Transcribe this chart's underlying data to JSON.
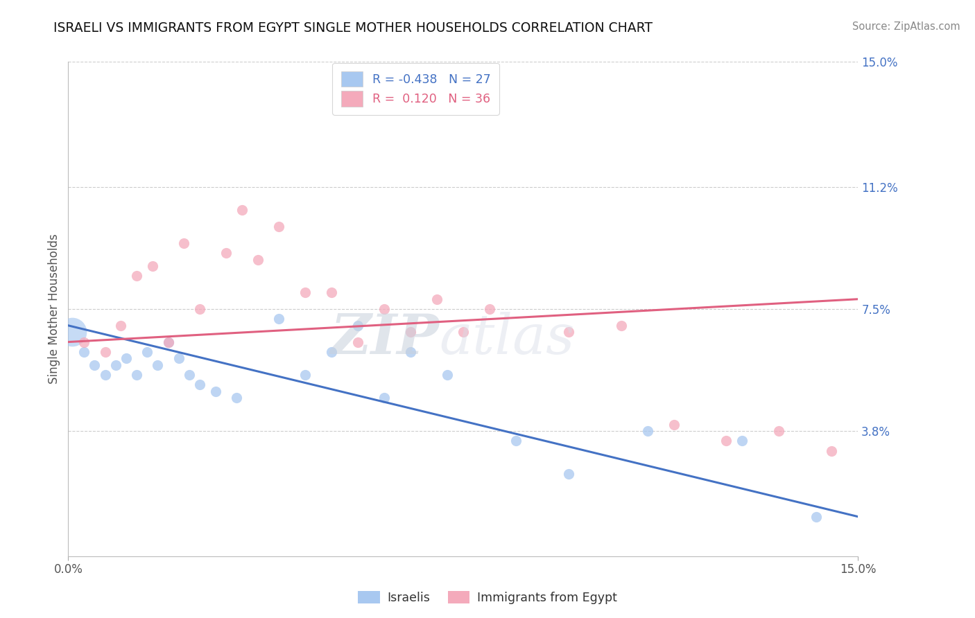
{
  "title": "ISRAELI VS IMMIGRANTS FROM EGYPT SINGLE MOTHER HOUSEHOLDS CORRELATION CHART",
  "source": "Source: ZipAtlas.com",
  "ylabel": "Single Mother Households",
  "ytick_values": [
    0.0,
    3.8,
    7.5,
    11.2,
    15.0
  ],
  "ytick_labels": [
    "",
    "3.8%",
    "7.5%",
    "11.2%",
    "15.0%"
  ],
  "xlim": [
    0.0,
    15.0
  ],
  "ylim": [
    0.0,
    15.0
  ],
  "blue_color": "#A8C8F0",
  "pink_color": "#F4AABB",
  "trend_blue": "#4472C4",
  "trend_pink": "#E06080",
  "watermark": "ZIPatlas",
  "background_color": "#FFFFFF",
  "grid_color": "#CCCCCC",
  "israelis_x": [
    0.3,
    0.5,
    0.7,
    0.9,
    1.1,
    1.3,
    1.5,
    1.7,
    1.9,
    2.1,
    2.3,
    2.5,
    2.8,
    3.2,
    4.0,
    4.5,
    5.0,
    5.5,
    6.0,
    6.5,
    7.2,
    8.5,
    9.5,
    11.0,
    12.8,
    14.2
  ],
  "israelis_y": [
    6.2,
    5.8,
    5.5,
    5.8,
    6.0,
    5.5,
    6.2,
    5.8,
    6.5,
    6.0,
    5.5,
    5.2,
    5.0,
    4.8,
    7.2,
    5.5,
    6.2,
    7.0,
    4.8,
    6.2,
    5.5,
    3.5,
    2.5,
    3.8,
    3.5,
    1.2
  ],
  "large_blue_x": 0.08,
  "large_blue_y": 6.8,
  "large_blue_size": 900,
  "egypt_x": [
    0.3,
    0.7,
    1.0,
    1.3,
    1.6,
    1.9,
    2.2,
    2.5,
    3.0,
    3.3,
    3.6,
    4.0,
    4.5,
    5.0,
    5.5,
    6.0,
    6.5,
    7.0,
    7.5,
    8.0,
    9.5,
    10.5,
    11.5,
    12.5,
    13.5,
    14.5
  ],
  "egypt_y": [
    6.5,
    6.2,
    7.0,
    8.5,
    8.8,
    6.5,
    9.5,
    7.5,
    9.2,
    10.5,
    9.0,
    10.0,
    8.0,
    8.0,
    6.5,
    7.5,
    6.8,
    7.8,
    6.8,
    7.5,
    6.8,
    7.0,
    4.0,
    3.5,
    3.8,
    3.2
  ],
  "blue_trend_start_y": 7.0,
  "blue_trend_end_y": 1.2,
  "pink_trend_start_y": 6.5,
  "pink_trend_end_y": 7.8,
  "dot_size": 120
}
